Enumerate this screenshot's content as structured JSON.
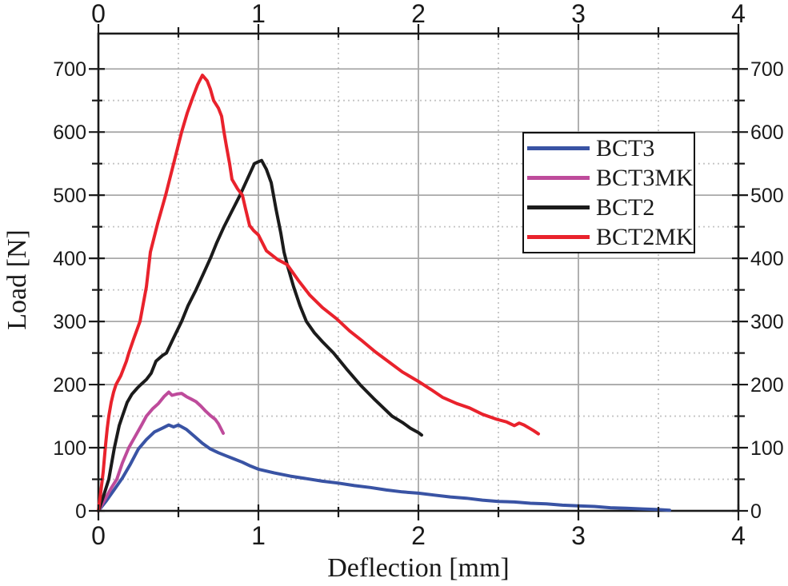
{
  "chart_data": {
    "type": "line",
    "title": "",
    "xlabel": "Deflection [mm]",
    "ylabel": "Load [N]",
    "xlim": [
      0,
      4
    ],
    "ylim": [
      0,
      756
    ],
    "x_major_ticks": [
      0,
      1,
      2,
      3,
      4
    ],
    "x_minor_ticks": [
      0.5,
      1.5,
      2.5,
      3.5
    ],
    "y_major_ticks": [
      0,
      100,
      200,
      300,
      400,
      500,
      600,
      700
    ],
    "y_minor_ticks": [
      50,
      150,
      250,
      350,
      450,
      550,
      650
    ],
    "grid": {
      "major": "solid",
      "minor": "dotted"
    },
    "legend_position": "upper-right",
    "style": {
      "axis_color": "#1a1a1a",
      "grid_major_color": "#a8a8a8",
      "grid_minor_color": "#c4c4c4",
      "background": "#ffffff"
    },
    "series": [
      {
        "name": "BCT3",
        "color": "#3953A4",
        "points": [
          [
            0,
            0
          ],
          [
            0.05,
            16
          ],
          [
            0.1,
            34
          ],
          [
            0.15,
            52
          ],
          [
            0.2,
            74
          ],
          [
            0.25,
            98
          ],
          [
            0.3,
            113
          ],
          [
            0.35,
            125
          ],
          [
            0.4,
            131
          ],
          [
            0.44,
            136
          ],
          [
            0.47,
            133
          ],
          [
            0.5,
            136
          ],
          [
            0.55,
            129
          ],
          [
            0.6,
            118
          ],
          [
            0.65,
            107
          ],
          [
            0.7,
            98
          ],
          [
            0.75,
            92
          ],
          [
            0.8,
            87
          ],
          [
            0.85,
            82
          ],
          [
            0.9,
            77
          ],
          [
            0.95,
            71
          ],
          [
            1.0,
            66
          ],
          [
            1.1,
            60
          ],
          [
            1.2,
            55
          ],
          [
            1.3,
            51
          ],
          [
            1.4,
            47
          ],
          [
            1.5,
            44
          ],
          [
            1.6,
            40
          ],
          [
            1.7,
            37
          ],
          [
            1.8,
            33
          ],
          [
            1.9,
            30
          ],
          [
            2.0,
            28
          ],
          [
            2.1,
            25
          ],
          [
            2.2,
            22
          ],
          [
            2.3,
            20
          ],
          [
            2.4,
            17
          ],
          [
            2.5,
            15
          ],
          [
            2.6,
            14
          ],
          [
            2.7,
            12
          ],
          [
            2.8,
            11
          ],
          [
            2.9,
            9
          ],
          [
            3.0,
            8
          ],
          [
            3.1,
            7
          ],
          [
            3.2,
            5
          ],
          [
            3.3,
            4
          ],
          [
            3.4,
            3
          ],
          [
            3.5,
            2
          ],
          [
            3.57,
            1
          ]
        ]
      },
      {
        "name": "BCT3MK",
        "color": "#BE4B9B",
        "points": [
          [
            0,
            0
          ],
          [
            0.04,
            18
          ],
          [
            0.08,
            36
          ],
          [
            0.115,
            50
          ],
          [
            0.15,
            76
          ],
          [
            0.19,
            100
          ],
          [
            0.23,
            118
          ],
          [
            0.27,
            136
          ],
          [
            0.3,
            150
          ],
          [
            0.34,
            162
          ],
          [
            0.375,
            170
          ],
          [
            0.41,
            181
          ],
          [
            0.44,
            188
          ],
          [
            0.46,
            183
          ],
          [
            0.49,
            185
          ],
          [
            0.52,
            186
          ],
          [
            0.55,
            181
          ],
          [
            0.58,
            177
          ],
          [
            0.61,
            173
          ],
          [
            0.64,
            166
          ],
          [
            0.67,
            158
          ],
          [
            0.7,
            151
          ],
          [
            0.73,
            145
          ],
          [
            0.75,
            138
          ],
          [
            0.77,
            128
          ],
          [
            0.78,
            123
          ]
        ]
      },
      {
        "name": "BCT2",
        "color": "#1B1B1B",
        "points": [
          [
            0,
            0
          ],
          [
            0.03,
            22
          ],
          [
            0.065,
            50
          ],
          [
            0.1,
            100
          ],
          [
            0.13,
            135
          ],
          [
            0.15,
            150
          ],
          [
            0.18,
            172
          ],
          [
            0.21,
            185
          ],
          [
            0.245,
            195
          ],
          [
            0.265,
            200
          ],
          [
            0.3,
            208
          ],
          [
            0.33,
            218
          ],
          [
            0.36,
            237
          ],
          [
            0.4,
            246
          ],
          [
            0.425,
            250
          ],
          [
            0.47,
            274
          ],
          [
            0.52,
            300
          ],
          [
            0.56,
            325
          ],
          [
            0.61,
            350
          ],
          [
            0.655,
            375
          ],
          [
            0.7,
            400
          ],
          [
            0.74,
            425
          ],
          [
            0.785,
            450
          ],
          [
            0.835,
            475
          ],
          [
            0.885,
            500
          ],
          [
            0.93,
            525
          ],
          [
            0.975,
            550
          ],
          [
            1.0,
            553
          ],
          [
            1.02,
            555
          ],
          [
            1.05,
            541
          ],
          [
            1.08,
            520
          ],
          [
            1.11,
            478
          ],
          [
            1.14,
            440
          ],
          [
            1.16,
            410
          ],
          [
            1.18,
            390
          ],
          [
            1.22,
            355
          ],
          [
            1.26,
            325
          ],
          [
            1.3,
            300
          ],
          [
            1.35,
            282
          ],
          [
            1.4,
            268
          ],
          [
            1.47,
            250
          ],
          [
            1.55,
            225
          ],
          [
            1.635,
            200
          ],
          [
            1.72,
            178
          ],
          [
            1.835,
            150
          ],
          [
            1.9,
            140
          ],
          [
            1.95,
            131
          ],
          [
            2.0,
            124
          ],
          [
            2.02,
            120
          ]
        ]
      },
      {
        "name": "BCT2MK",
        "color": "#E9222C",
        "points": [
          [
            0,
            0
          ],
          [
            0.015,
            30
          ],
          [
            0.03,
            62
          ],
          [
            0.045,
            105
          ],
          [
            0.055,
            130
          ],
          [
            0.065,
            150
          ],
          [
            0.08,
            172
          ],
          [
            0.095,
            188
          ],
          [
            0.11,
            200
          ],
          [
            0.14,
            214
          ],
          [
            0.175,
            237
          ],
          [
            0.19,
            250
          ],
          [
            0.22,
            272
          ],
          [
            0.26,
            300
          ],
          [
            0.3,
            355
          ],
          [
            0.325,
            410
          ],
          [
            0.37,
            455
          ],
          [
            0.42,
            500
          ],
          [
            0.47,
            550
          ],
          [
            0.52,
            600
          ],
          [
            0.555,
            630
          ],
          [
            0.59,
            655
          ],
          [
            0.62,
            675
          ],
          [
            0.65,
            690
          ],
          [
            0.68,
            681
          ],
          [
            0.7,
            668
          ],
          [
            0.72,
            650
          ],
          [
            0.75,
            638
          ],
          [
            0.77,
            625
          ],
          [
            0.785,
            600
          ],
          [
            0.8,
            578
          ],
          [
            0.82,
            550
          ],
          [
            0.835,
            525
          ],
          [
            0.87,
            510
          ],
          [
            0.9,
            500
          ],
          [
            0.92,
            478
          ],
          [
            0.945,
            452
          ],
          [
            0.97,
            444
          ],
          [
            1.0,
            437
          ],
          [
            1.05,
            412
          ],
          [
            1.12,
            398
          ],
          [
            1.18,
            390
          ],
          [
            1.25,
            365
          ],
          [
            1.32,
            342
          ],
          [
            1.4,
            322
          ],
          [
            1.49,
            304
          ],
          [
            1.57,
            285
          ],
          [
            1.65,
            269
          ],
          [
            1.73,
            252
          ],
          [
            1.82,
            235
          ],
          [
            1.9,
            220
          ],
          [
            2.0,
            205
          ],
          [
            2.08,
            192
          ],
          [
            2.15,
            180
          ],
          [
            2.24,
            170
          ],
          [
            2.32,
            163
          ],
          [
            2.4,
            153
          ],
          [
            2.49,
            145
          ],
          [
            2.55,
            141
          ],
          [
            2.6,
            135
          ],
          [
            2.63,
            139
          ],
          [
            2.66,
            136
          ],
          [
            2.7,
            130
          ],
          [
            2.72,
            127
          ],
          [
            2.75,
            122
          ]
        ]
      }
    ]
  }
}
